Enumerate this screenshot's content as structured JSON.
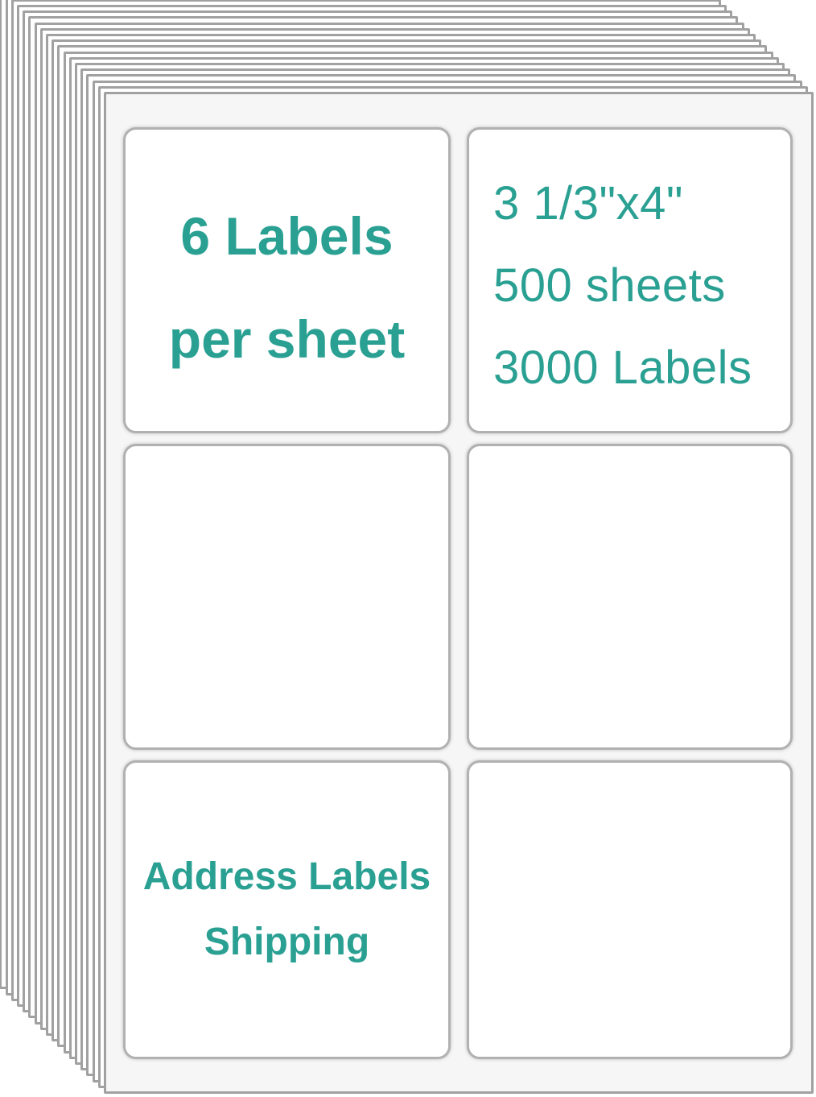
{
  "product_image": {
    "type": "address-shipping-label-sheets",
    "stack": {
      "sheet_count": 19
    },
    "colors": {
      "accent": "#2aa093",
      "sheet_border": "#a1a1a1",
      "label_border": "#b1b1b1",
      "sheet_bg": "#f6f6f6",
      "label_bg": "#ffffff"
    },
    "top_left_label": {
      "line1": "6 Labels",
      "line2": "per sheet"
    },
    "top_right_label": {
      "line1": "3 1/3\"x4\"",
      "line2": "500 sheets",
      "line3": "3000 Labels"
    },
    "bottom_left_label": {
      "line1": "Address Labels",
      "line2": "Shipping"
    }
  }
}
